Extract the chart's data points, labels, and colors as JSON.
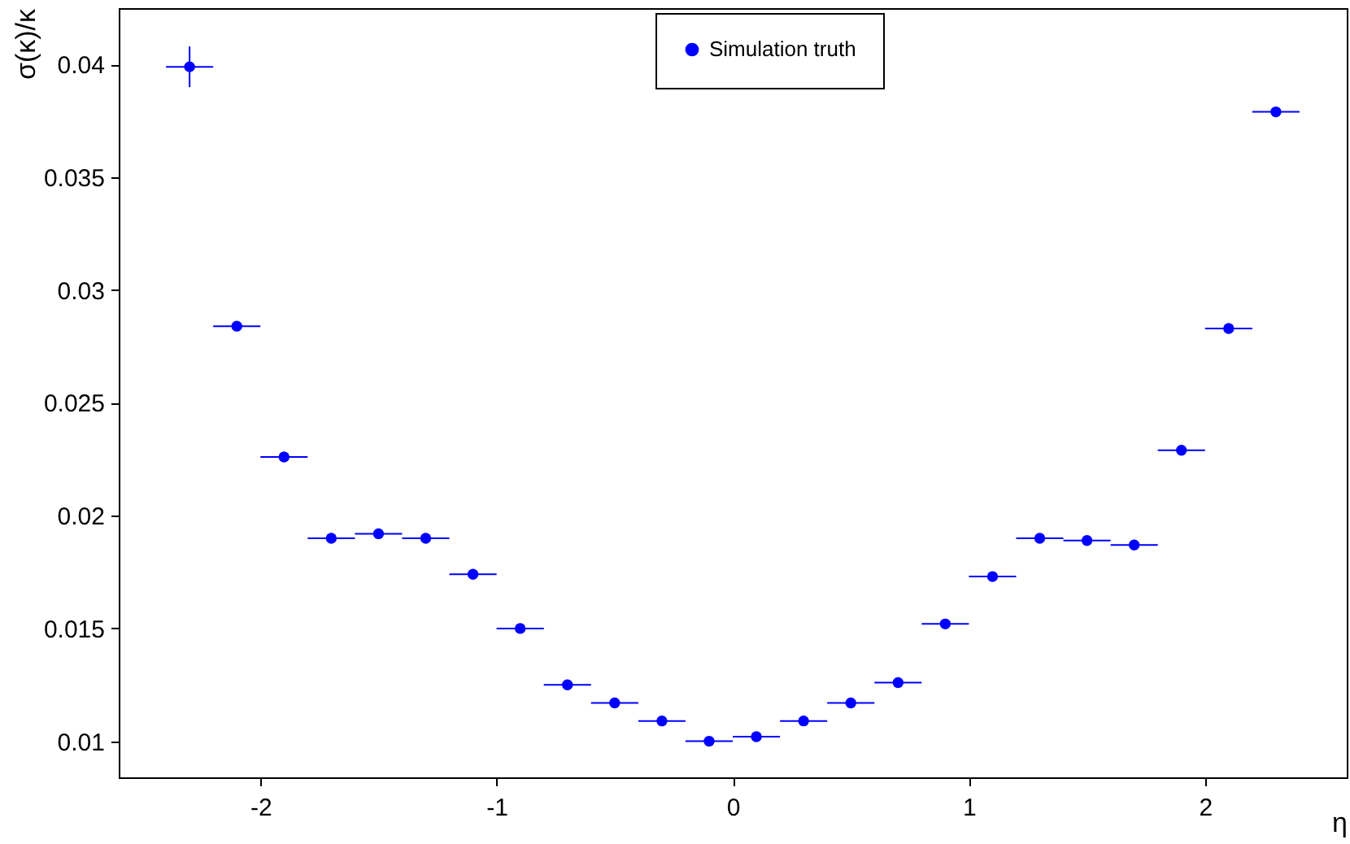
{
  "chart_data": {
    "type": "scatter",
    "xlabel": "η",
    "ylabel": "σ(κ)/κ",
    "legend": "top",
    "marker": "circle",
    "grid": false,
    "x": [
      -2.3,
      -2.1,
      -1.9,
      -1.7,
      -1.5,
      -1.3,
      -1.1,
      -0.9,
      -0.7,
      -0.5,
      -0.3,
      -0.1,
      0.1,
      0.3,
      0.5,
      0.7,
      0.9,
      1.1,
      1.3,
      1.5,
      1.7,
      1.9,
      2.1,
      2.3
    ],
    "xlim": [
      -2.6,
      2.6
    ],
    "xticks": [
      -2,
      -1,
      0,
      1,
      2
    ],
    "ylim": [
      0.0084,
      0.0425
    ],
    "yticks": [
      0.01,
      0.015,
      0.02,
      0.025,
      0.03,
      0.035,
      0.04
    ],
    "series": [
      {
        "name": "Simulation truth",
        "color": "#0000ff",
        "values": [
          0.0399,
          0.0284,
          0.0226,
          0.019,
          0.0192,
          0.019,
          0.0174,
          0.015,
          0.0125,
          0.0117,
          0.0109,
          0.01,
          0.0102,
          0.0109,
          0.0117,
          0.0126,
          0.0152,
          0.0173,
          0.019,
          0.0189,
          0.0187,
          0.0229,
          0.0283,
          0.0379
        ],
        "errors": [
          0.0009,
          null,
          null,
          null,
          null,
          null,
          null,
          null,
          null,
          null,
          null,
          null,
          null,
          null,
          null,
          null,
          null,
          null,
          null,
          null,
          null,
          null,
          null,
          null
        ],
        "xerrors": [
          0.1,
          0.1,
          0.1,
          0.1,
          0.1,
          0.1,
          0.1,
          0.1,
          0.1,
          0.1,
          0.1,
          0.1,
          0.1,
          0.1,
          0.1,
          0.1,
          0.1,
          0.1,
          0.1,
          0.1,
          0.1,
          0.1,
          0.1,
          0.1
        ]
      }
    ]
  }
}
